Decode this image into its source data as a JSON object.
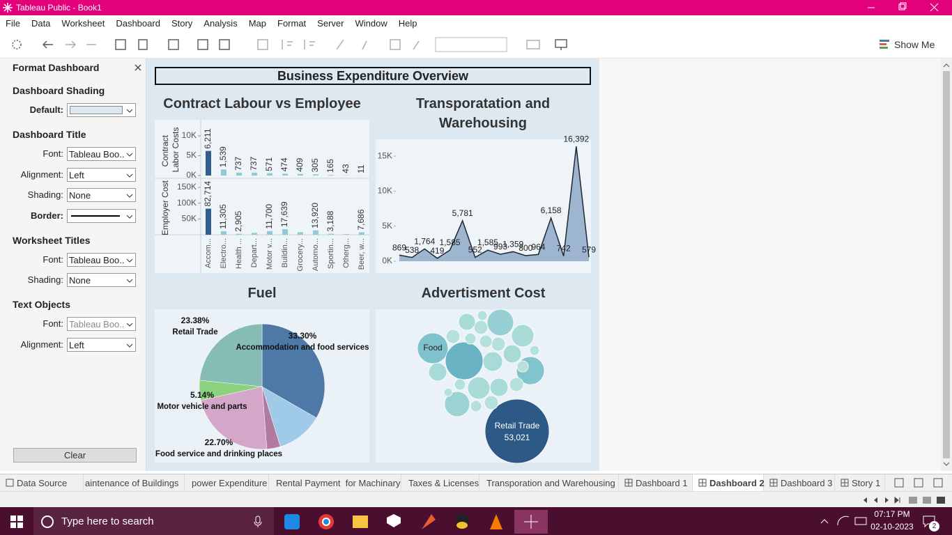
{
  "window": {
    "title": "Tableau Public - Book1"
  },
  "menu": [
    "File",
    "Data",
    "Worksheet",
    "Dashboard",
    "Story",
    "Analysis",
    "Map",
    "Format",
    "Server",
    "Window",
    "Help"
  ],
  "toolbar": {
    "show_me": "Show Me"
  },
  "format_panel": {
    "title": "Format Dashboard",
    "sections": [
      {
        "heading": "Dashboard Shading",
        "rows": [
          {
            "label": "Default:",
            "swatch": "#dce8f0"
          }
        ]
      },
      {
        "heading": "Dashboard Title",
        "rows": [
          {
            "label": "Font:",
            "value": "Tableau Boo.."
          },
          {
            "label": "Alignment:",
            "value": "Left"
          },
          {
            "label": "Shading:",
            "value": "None"
          },
          {
            "label": "Border:"
          }
        ]
      },
      {
        "heading": "Worksheet Titles",
        "rows": [
          {
            "label": "Font:",
            "value": "Tableau Boo.."
          },
          {
            "label": "Shading:",
            "value": "None"
          }
        ]
      },
      {
        "heading": "Text Objects",
        "rows": [
          {
            "label": "Font:",
            "value": "Tableau Boo.."
          },
          {
            "label": "Alignment:",
            "value": "Left"
          }
        ]
      }
    ],
    "clear": "Clear"
  },
  "dashboard": {
    "title": "Business Expenditure Overview",
    "shading": "#dde8f0"
  },
  "chart_data": [
    {
      "type": "bar",
      "title": "Contract Labour vs Employee",
      "categories": [
        "Accom...",
        "Electro...",
        "Health ...",
        "Depart...",
        "Motor v...",
        "Buildin...",
        "Grocery...",
        "Automo...",
        "Sportin...",
        "Otherg...",
        "Beer, w..."
      ],
      "colors": [
        "#2f5f8a",
        "#8fcbd6",
        "#8fcbd6",
        "#8fcbd6",
        "#8fcbd6",
        "#8fcbd6",
        "#8fcbd6",
        "#8fcbd6",
        "#8fcbd6",
        "#8fcbd6",
        "#8fcbd6"
      ],
      "series": [
        {
          "name": "Contract Labor Costs",
          "values": [
            6211,
            1539,
            737,
            737,
            571,
            474,
            409,
            305,
            165,
            43,
            11
          ],
          "value_labels": [
            "6,211",
            "1,539",
            "737",
            "737",
            "571",
            "474",
            "409",
            "305",
            "165",
            "43",
            "11"
          ],
          "ylim": [
            0,
            13000
          ],
          "yticks": [
            {
              "value": 0,
              "label": "0K"
            },
            {
              "value": 5000,
              "label": "5K"
            },
            {
              "value": 10000,
              "label": "10K"
            }
          ]
        },
        {
          "name": "Employer Cost",
          "values": [
            82714,
            11305,
            2905,
            6000,
            11700,
            17639,
            8000,
            13920,
            3188,
            2000,
            7686
          ],
          "value_labels": [
            "82,714",
            "11,305",
            "2,905",
            null,
            "11,700",
            "17,639",
            null,
            "13,920",
            "3,188",
            null,
            "7,686"
          ],
          "ylim": [
            0,
            170000
          ],
          "yticks": [
            {
              "value": 50000,
              "label": "50K"
            },
            {
              "value": 100000,
              "label": "100K"
            },
            {
              "value": 150000,
              "label": "150K"
            }
          ]
        }
      ]
    },
    {
      "type": "area",
      "title": "Transporatation and Warehousing",
      "values": [
        869,
        538,
        1764,
        419,
        1585,
        5781,
        552,
        1585,
        993,
        1359,
        800,
        964,
        6158,
        742,
        16392,
        579
      ],
      "value_labels": [
        "869",
        "538",
        "1,764",
        "419",
        "1,585",
        "5,781",
        "552",
        "1,585",
        "993",
        "1,359",
        "800",
        "964",
        "6,158",
        "742",
        "16,392",
        "579"
      ],
      "ylim": [
        0,
        17000
      ],
      "yticks": [
        {
          "value": 0,
          "label": "0K"
        },
        {
          "value": 5000,
          "label": "5K"
        },
        {
          "value": 10000,
          "label": "10K"
        },
        {
          "value": 15000,
          "label": "15K"
        }
      ],
      "color": "#8ea9c8",
      "line_color": "#1c2733"
    },
    {
      "type": "pie",
      "title": "Fuel",
      "categories": [
        "Accommodation and food services",
        null,
        null,
        "Food service and drinking places",
        "Motor vehicle and parts",
        "Retail Trade"
      ],
      "values": [
        33.3,
        12.0,
        3.48,
        22.7,
        5.14,
        23.38
      ],
      "value_labels": [
        "33.30%",
        null,
        null,
        "22.70%",
        "5.14%",
        "23.38%"
      ],
      "colors": [
        "#4e79a7",
        "#a0cbe8",
        "#b07aa1",
        "#d4a6c8",
        "#8cd17d",
        "#86bcb6"
      ]
    },
    {
      "type": "bubble",
      "title": "Advertisment Cost",
      "categories": [
        "Retail Trade",
        "Food",
        null,
        null,
        null,
        null,
        null,
        null,
        null,
        null,
        null,
        null,
        null,
        null,
        null,
        null,
        null,
        null,
        null,
        null,
        null,
        null,
        null,
        null,
        null,
        null
      ],
      "values": [
        53021,
        12129,
        18266,
        9045,
        6415,
        10022,
        8120,
        6415,
        4911,
        4235,
        4235,
        2506,
        3608,
        2506,
        4235,
        2030,
        2506,
        2506,
        1604,
        2506,
        1228,
        1604,
        902,
        1228,
        1604,
        1604
      ],
      "value_labels": [
        "53,021",
        null,
        null,
        null,
        null,
        null,
        null,
        null,
        null,
        null,
        null,
        null,
        null,
        null,
        null,
        null,
        null,
        null,
        null,
        null,
        null,
        null,
        null,
        null,
        null,
        null
      ],
      "colors": [
        "#2c5985",
        "#7fc1cc",
        "#6ab3c4",
        "#96cfd3",
        "#a8dad8",
        "#82c4cc",
        "#9bd2d2",
        "#a8dad8",
        "#a8dad8",
        "#a8dad8",
        "#a8dad8",
        "#b5e0dc",
        "#a8dad8",
        "#b5e0dc",
        "#a8dad8",
        "#b5e0dc",
        "#b5e0dc",
        "#b5e0dc",
        "#b5e0dc",
        "#b5e0dc",
        "#b5e0dc",
        "#b5e0dc",
        "#b5e0dc",
        "#b5e0dc",
        "#b5e0dc",
        "#b5e0dc"
      ]
    }
  ],
  "sheet_tabs": [
    "Data Source",
    "aintenance of Buildings",
    "power Expenditure",
    "Rental Payment  for Machinary",
    "Taxes & Licenses",
    "Transporation and Warehousing",
    "Dashboard 1",
    "Dashboard 2",
    "Dashboard 3",
    "Story 1"
  ],
  "active_tab": 7,
  "taskbar": {
    "search": "Type here to search",
    "time": "07:17 PM",
    "date": "02-10-2023",
    "notifications": 2
  }
}
